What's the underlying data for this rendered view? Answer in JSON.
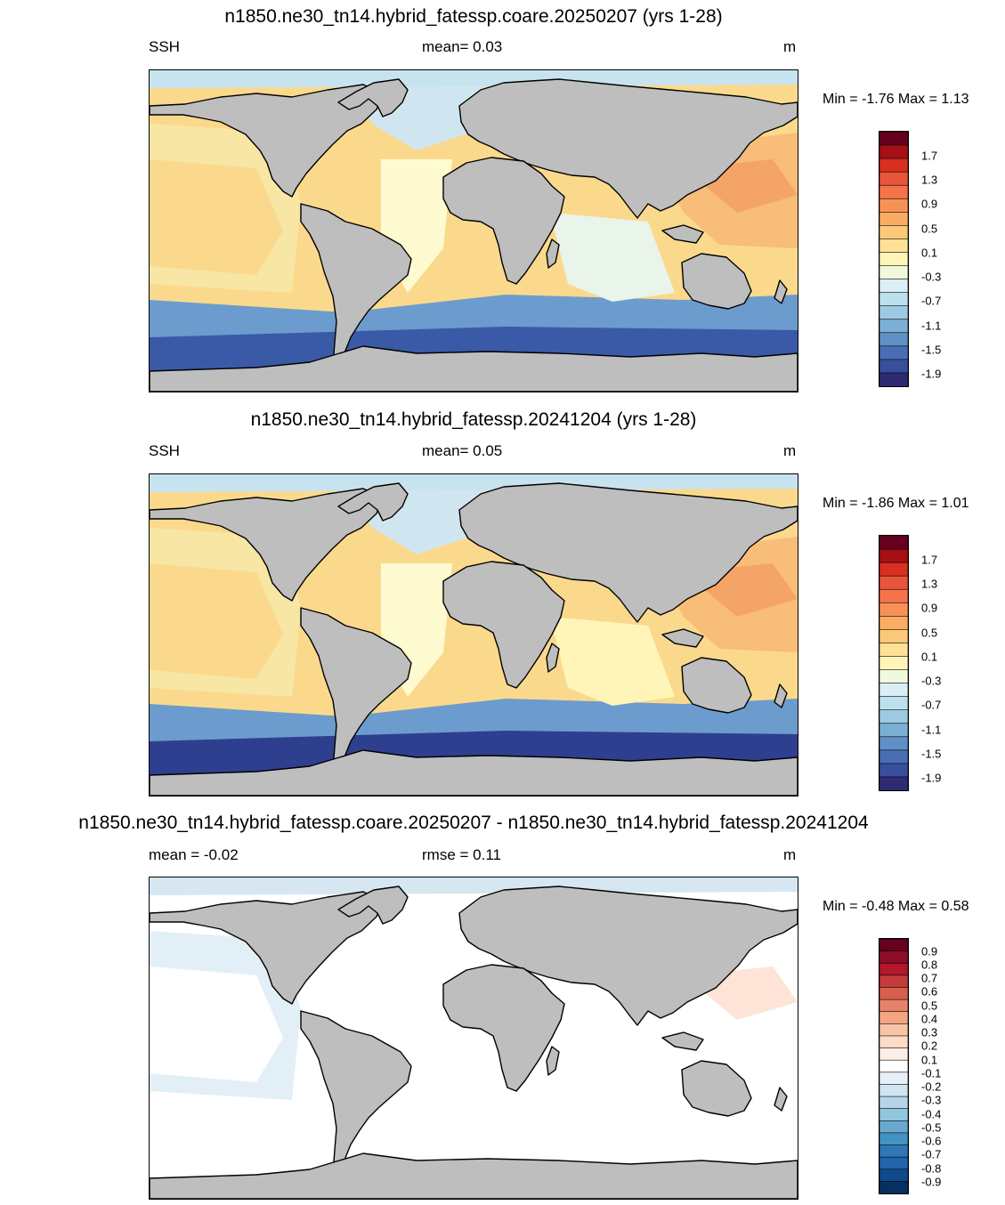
{
  "panels": [
    {
      "title": "n1850.ne30_tn14.hybrid_fatessp.coare.20250207 (yrs 1-28)",
      "left_label": "SSH",
      "center_label": "mean=   0.03",
      "units": "m",
      "minmax": "Min =  -1.76 Max =   1.13",
      "colorbar": {
        "labels": [
          "1.7",
          "1.3",
          "0.9",
          "0.5",
          "0.1",
          "-0.3",
          "-0.7",
          "-1.1",
          "-1.5",
          "-1.9"
        ],
        "colors": [
          "#67001f",
          "#a50f15",
          "#d7301f",
          "#e8553b",
          "#f4734b",
          "#f79257",
          "#faad62",
          "#fcc979",
          "#fee097",
          "#fff5b8",
          "#f0f9dc",
          "#daeef5",
          "#bde0ee",
          "#9dcae3",
          "#7bafd4",
          "#5f90c6",
          "#4a6eb4",
          "#3a4f9c",
          "#2f2b70"
        ]
      },
      "ocean_colors": [
        "#3a5aa8",
        "#6c9ccd",
        "#f8e6a5",
        "#fbd98c",
        "#f8bd78",
        "#f5a467",
        "#cfe6f1",
        "#fffbd0",
        "#c7e3f0",
        "#e9f4ea"
      ]
    },
    {
      "title": "n1850.ne30_tn14.hybrid_fatessp.20241204 (yrs 1-28)",
      "left_label": "SSH",
      "center_label": "mean=   0.05",
      "units": "m",
      "minmax": "Min =  -1.86 Max =   1.01",
      "colorbar": {
        "labels": [
          "1.7",
          "1.3",
          "0.9",
          "0.5",
          "0.1",
          "-0.3",
          "-0.7",
          "-1.1",
          "-1.5",
          "-1.9"
        ],
        "colors": [
          "#67001f",
          "#a50f15",
          "#d7301f",
          "#e8553b",
          "#f4734b",
          "#f79257",
          "#faad62",
          "#fcc979",
          "#fee097",
          "#fff5b8",
          "#f0f9dc",
          "#daeef5",
          "#bde0ee",
          "#9dcae3",
          "#7bafd4",
          "#5f90c6",
          "#4a6eb4",
          "#3a4f9c",
          "#2f2b70"
        ]
      },
      "ocean_colors": [
        "#2f3f8f",
        "#6c9ccd",
        "#f8e6a5",
        "#fbd98c",
        "#f8bd78",
        "#f5a467",
        "#cfe6f1",
        "#fffbd0",
        "#c7e3f0",
        "#fff5b8"
      ]
    },
    {
      "title": "n1850.ne30_tn14.hybrid_fatessp.coare.20250207 - n1850.ne30_tn14.hybrid_fatessp.20241204",
      "left_label": "mean =  -0.02",
      "center_label": "rmse =   0.11",
      "units": "m",
      "minmax": "Min =  -0.48 Max =   0.58",
      "colorbar": {
        "labels": [
          "0.9",
          "0.8",
          "0.7",
          "0.6",
          "0.5",
          "0.4",
          "0.3",
          "0.2",
          "0.1",
          "-0.1",
          "-0.2",
          "-0.3",
          "-0.4",
          "-0.5",
          "-0.6",
          "-0.7",
          "-0.8",
          "-0.9"
        ],
        "colors": [
          "#67001f",
          "#8e0d26",
          "#b2182b",
          "#c43c3c",
          "#d6604d",
          "#e58268",
          "#f4a582",
          "#f8c4a6",
          "#fddbc7",
          "#fbeee6",
          "#ffffff",
          "#e7f0f6",
          "#d1e5f0",
          "#b5d4e8",
          "#92c5de",
          "#6aa9cf",
          "#4393c3",
          "#2f78b5",
          "#2166ac",
          "#0f4a8a",
          "#053061"
        ]
      },
      "ocean_colors": [
        "#ffffff",
        "#ffffff",
        "#e3eff7",
        "#ffffff",
        "#ffffff",
        "#fde4d6",
        "#ffffff",
        "#ffffff",
        "#d6e7f2",
        "#ffffff"
      ]
    }
  ]
}
